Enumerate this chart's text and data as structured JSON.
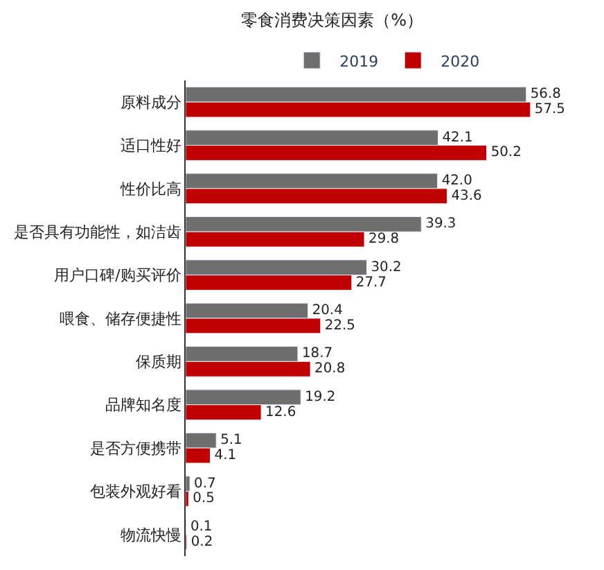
{
  "chart_data": {
    "type": "bar",
    "orientation": "horizontal",
    "title": "零食消费决策因素（%）",
    "categories": [
      "原料成分",
      "适口性好",
      "性价比高",
      "是否具有功能性，如洁齿",
      "用户口碑/购买评价",
      "喂食、储存便捷性",
      "保质期",
      "品牌知名度",
      "是否方便携带",
      "包装外观好看",
      "物流快慢"
    ],
    "series": [
      {
        "name": "2019",
        "color": "#6e6e6e",
        "values": [
          56.8,
          42.1,
          42.0,
          39.3,
          30.2,
          20.4,
          18.7,
          19.2,
          5.1,
          0.7,
          0.1
        ],
        "value_labels": [
          "56.8",
          "42.1",
          "42.0",
          "39.3",
          "30.2",
          "20.4",
          "18.7",
          "19.2",
          "5.1",
          "0.7",
          "0.1"
        ]
      },
      {
        "name": "2020",
        "color": "#c00000",
        "values": [
          57.5,
          50.2,
          43.6,
          29.8,
          27.7,
          22.5,
          20.8,
          12.6,
          4.1,
          0.5,
          0.2
        ],
        "value_labels": [
          "57.5",
          "50.2",
          "43.6",
          "29.8",
          "27.7",
          "22.5",
          "20.8",
          "12.6",
          "4.1",
          "0.5",
          "0.2"
        ]
      }
    ],
    "legend": "top"
  }
}
